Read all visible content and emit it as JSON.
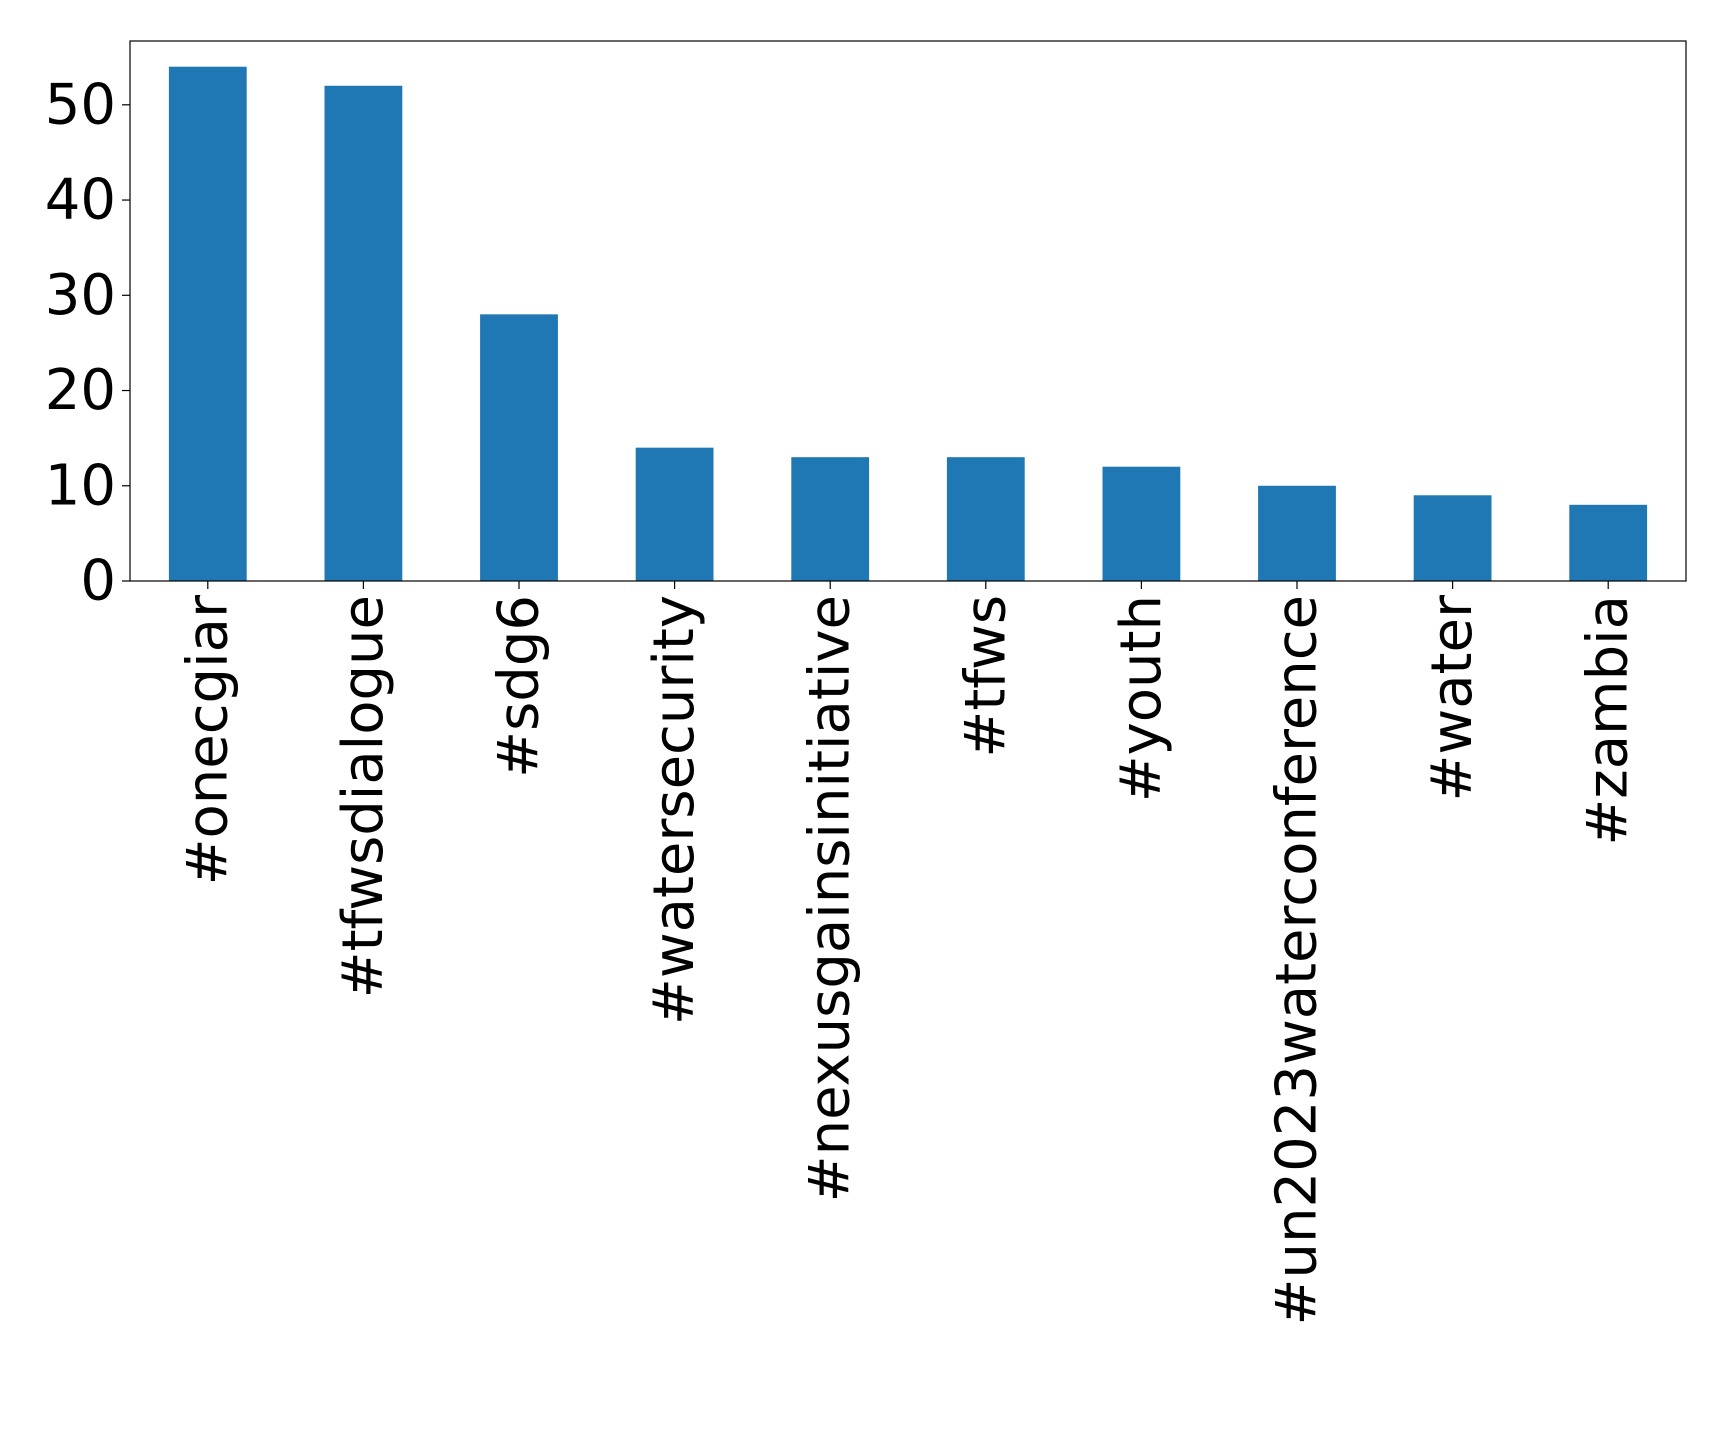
{
  "chart_data": {
    "type": "bar",
    "title": "",
    "xlabel": "",
    "ylabel": "",
    "categories": [
      "#onecgiar",
      "#tfwsdialogue",
      "#sdg6",
      "#watersecurity",
      "#nexusgainsinitiative",
      "#tfws",
      "#youth",
      "#un2023waterconference",
      "#water",
      "#zambia"
    ],
    "values": [
      54,
      52,
      28,
      14,
      13,
      13,
      12,
      10,
      9,
      8
    ],
    "ylim": [
      0,
      56.7
    ],
    "yticks": [
      0,
      10,
      20,
      30,
      40,
      50
    ],
    "ytick_labels": [
      "0",
      "10",
      "20",
      "30",
      "40",
      "50"
    ],
    "grid": false,
    "legend": "none",
    "colors": {
      "bar": "#1f77b4",
      "axis": "#000000",
      "text": "#000000",
      "background": "#ffffff"
    }
  }
}
